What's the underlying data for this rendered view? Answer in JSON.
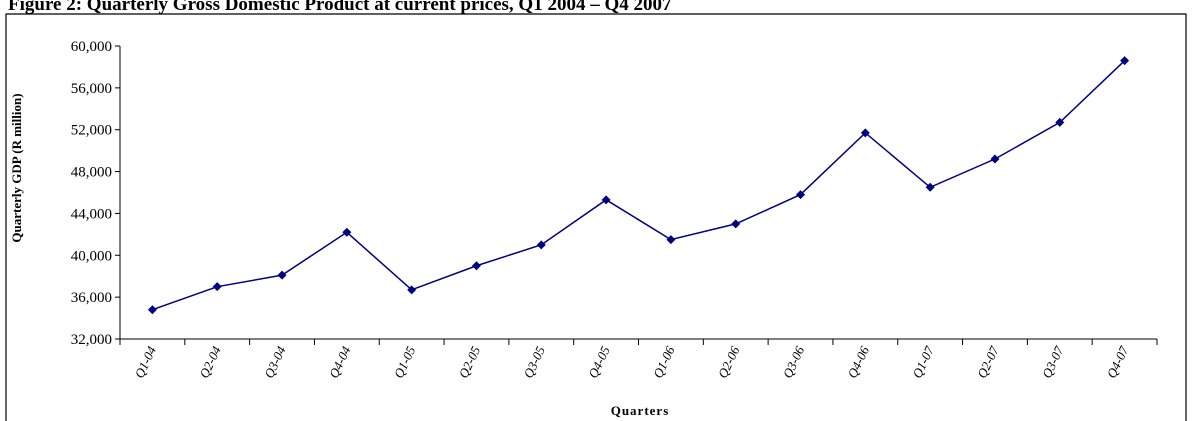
{
  "chart_data": {
    "type": "line",
    "title": "Figure 2: Quarterly Gross Domestic Product at current prices, Q1 2004 – Q4 2007",
    "xlabel": "Quarters",
    "ylabel": "Quarterly GDP (R million)",
    "categories": [
      "Q1-04",
      "Q2-04",
      "Q3-04",
      "Q4-04",
      "Q1-05",
      "Q2-05",
      "Q3-05",
      "Q4-05",
      "Q1-06",
      "Q2-06",
      "Q3-06",
      "Q4-06",
      "Q1-07",
      "Q2-07",
      "Q3-07",
      "Q4-07"
    ],
    "y_ticks": [
      "32,000",
      "36,000",
      "40,000",
      "44,000",
      "48,000",
      "52,000",
      "56,000",
      "60,000"
    ],
    "ylim": [
      32000,
      60000
    ],
    "series": [
      {
        "values": [
          34800,
          37000,
          38100,
          42200,
          36700,
          39000,
          41000,
          45300,
          41500,
          43000,
          45800,
          51700,
          46500,
          49200,
          52700,
          58600
        ]
      }
    ],
    "grid": false,
    "legend": "none",
    "colors": {
      "line": "#000080",
      "marker": "#000080",
      "axis": "#000000",
      "frame": "#000000"
    }
  }
}
